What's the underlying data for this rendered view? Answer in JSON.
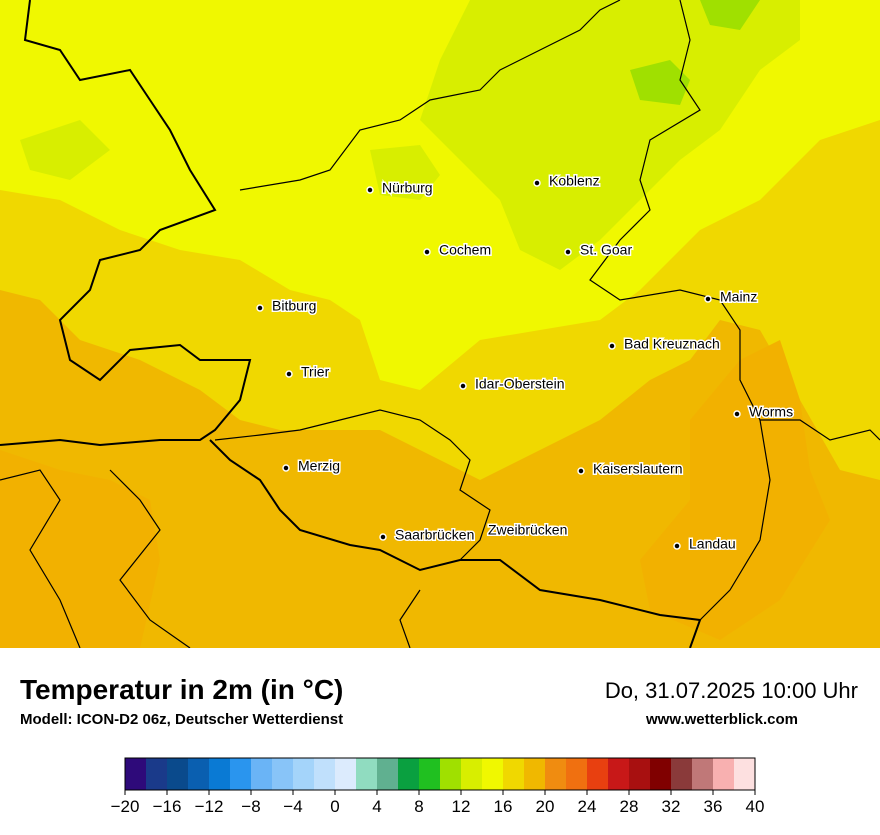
{
  "map": {
    "title": "Temperatur in 2m (in °C)",
    "subtitle": "Modell: ICON-D2 06z, Deutscher Wetterdienst",
    "datetime": "Do, 31.07.2025 10:00 Uhr",
    "website": "www.wetterblick.com",
    "cities": [
      "Nürburg",
      "Koblenz",
      "Cochem",
      "St. Goar",
      "Mainz",
      "Bitburg",
      "Bad Kreuznach",
      "Trier",
      "Idar-Oberstein",
      "Worms",
      "Merzig",
      "Kaiserslautern",
      "Saarbrücken",
      "Zweibrücken",
      "Landau"
    ],
    "legend": {
      "lim": [
        -20,
        40
      ],
      "colors": [
        "#2e0a7a",
        "#1a3a8a",
        "#0a4a8c",
        "#0a5fb0",
        "#0a7ad4",
        "#2a95ee",
        "#6ab4f6",
        "#88c4f8",
        "#a4d4fa",
        "#c0e0fc",
        "#dcebfd",
        "#90dcc0",
        "#60b090",
        "#0aa040",
        "#20c020",
        "#a0e000",
        "#d8ee00",
        "#f0f800",
        "#f0d800",
        "#f0b800",
        "#f08c10",
        "#f07010",
        "#e84010",
        "#c81818",
        "#a81010",
        "#800000",
        "#8a3a3a",
        "#c07878",
        "#f8b0b0",
        "#fde0e0"
      ],
      "ticks": [
        {
          "value": -20,
          "label": "−20"
        },
        {
          "value": -16,
          "label": "−16"
        },
        {
          "value": -12,
          "label": "−12"
        },
        {
          "value": -8,
          "label": "−8"
        },
        {
          "value": -4,
          "label": "−4"
        },
        0,
        4,
        8,
        12,
        16,
        20,
        24,
        28,
        32,
        36,
        40
      ]
    }
  }
}
